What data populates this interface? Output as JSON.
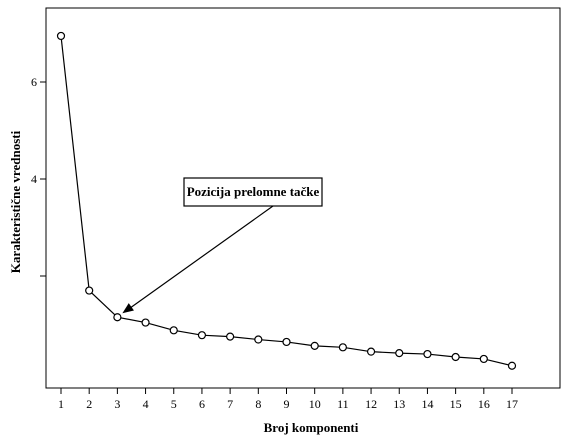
{
  "chart_data": {
    "type": "line",
    "xlabel": "Broj komponenti",
    "ylabel": "Karakteristične vrednosti",
    "x": [
      1,
      2,
      3,
      4,
      5,
      6,
      7,
      8,
      9,
      10,
      11,
      12,
      13,
      14,
      15,
      16,
      17
    ],
    "y": [
      6.95,
      1.7,
      1.15,
      1.04,
      0.88,
      0.78,
      0.75,
      0.69,
      0.64,
      0.56,
      0.53,
      0.44,
      0.41,
      0.39,
      0.33,
      0.29,
      0.15
    ],
    "xlim": [
      0,
      18
    ],
    "ylim": [
      0,
      7.5
    ],
    "xticks": [
      1,
      2,
      3,
      4,
      5,
      6,
      7,
      8,
      9,
      10,
      11,
      12,
      13,
      14,
      15,
      16,
      17
    ],
    "yticks": [
      2,
      4,
      6
    ],
    "ytick_labels": [
      "",
      "4",
      "6"
    ],
    "grid": false,
    "marker": "open-circle",
    "annotation": {
      "text": "Pozicija prelomne tačke",
      "points_to": {
        "x": 3,
        "y": 1.15
      }
    }
  }
}
